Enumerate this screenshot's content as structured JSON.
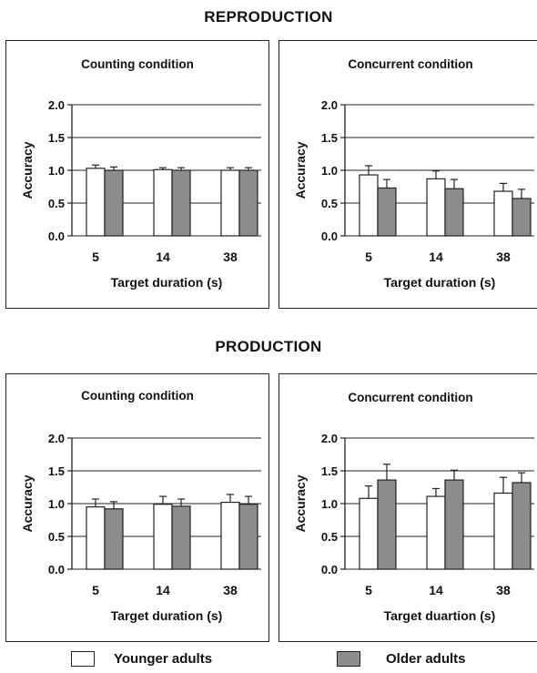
{
  "sections": {
    "reproduction": "REPRODUCTION",
    "production": "PRODUCTION"
  },
  "legend": {
    "younger": "Younger adults",
    "older": "Older adults",
    "younger_color": "#ffffff",
    "older_color": "#8c8c8c"
  },
  "chart_data": [
    {
      "type": "bar",
      "title": "Counting condition",
      "xlabel": "Target duration (s)",
      "ylabel": "Accuracy",
      "ylim": [
        0,
        2.0
      ],
      "yticks": [
        "0.0",
        "0.5",
        "1.0",
        "1.5",
        "2.0"
      ],
      "categories": [
        "5",
        "14",
        "38"
      ],
      "grid": true,
      "series": [
        {
          "name": "Younger adults",
          "color": "#ffffff",
          "values": [
            1.03,
            1.01,
            1.0
          ],
          "errors": [
            0.05,
            0.03,
            0.04
          ]
        },
        {
          "name": "Older adults",
          "color": "#8c8c8c",
          "values": [
            1.0,
            1.0,
            1.0
          ],
          "errors": [
            0.05,
            0.04,
            0.04
          ]
        }
      ]
    },
    {
      "type": "bar",
      "title": "Concurrent condition",
      "xlabel": "Target duration (s)",
      "ylabel": "Accuracy",
      "ylim": [
        0,
        2.0
      ],
      "yticks": [
        "0.0",
        "0.5",
        "1.0",
        "1.5",
        "2.0"
      ],
      "categories": [
        "5",
        "14",
        "38"
      ],
      "grid": true,
      "series": [
        {
          "name": "Younger adults",
          "color": "#ffffff",
          "values": [
            0.93,
            0.87,
            0.68
          ],
          "errors": [
            0.14,
            0.12,
            0.12
          ]
        },
        {
          "name": "Older adults",
          "color": "#8c8c8c",
          "values": [
            0.73,
            0.72,
            0.57
          ],
          "errors": [
            0.13,
            0.14,
            0.14
          ]
        }
      ]
    },
    {
      "type": "bar",
      "title": "Counting condition",
      "xlabel": "Target duration (s)",
      "ylabel": "Accuracy",
      "ylim": [
        0,
        2.0
      ],
      "yticks": [
        "0.0",
        "0.5",
        "1.0",
        "1.5",
        "2.0"
      ],
      "categories": [
        "5",
        "14",
        "38"
      ],
      "grid": true,
      "series": [
        {
          "name": "Younger adults",
          "color": "#ffffff",
          "values": [
            0.95,
            0.99,
            1.02
          ],
          "errors": [
            0.12,
            0.12,
            0.12
          ]
        },
        {
          "name": "Older adults",
          "color": "#8c8c8c",
          "values": [
            0.92,
            0.96,
            0.99
          ],
          "errors": [
            0.11,
            0.11,
            0.12
          ]
        }
      ]
    },
    {
      "type": "bar",
      "title": "Concurrent condition",
      "xlabel": "Target duartion (s)",
      "ylabel": "Accuracy",
      "ylim": [
        0,
        2.0
      ],
      "yticks": [
        "0.0",
        "0.5",
        "1.0",
        "1.5",
        "2.0"
      ],
      "categories": [
        "5",
        "14",
        "38"
      ],
      "grid": true,
      "series": [
        {
          "name": "Younger adults",
          "color": "#ffffff",
          "values": [
            1.08,
            1.11,
            1.16
          ],
          "errors": [
            0.19,
            0.12,
            0.24
          ]
        },
        {
          "name": "Older adults",
          "color": "#8c8c8c",
          "values": [
            1.36,
            1.36,
            1.32
          ],
          "errors": [
            0.24,
            0.15,
            0.15
          ]
        }
      ]
    }
  ]
}
